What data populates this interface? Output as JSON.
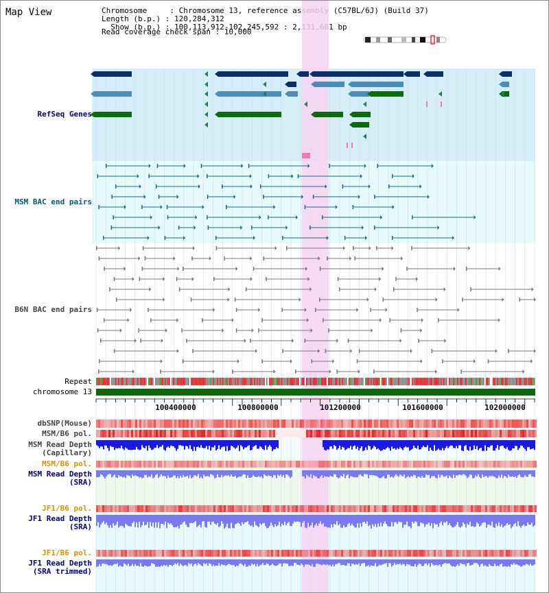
{
  "header": {
    "title": "Map View",
    "chromosome_line": "Chromosome     : Chromosome 13, reference assembly (C57BL/6J) (Build 37)",
    "length_line": "Length (b.p.) : 120,284,312",
    "show_line": "  Show (b.p.) : 100,113,912-102,245,592 : 2,131,681 bp",
    "coverage_line": "Read coverage check span : 10,000"
  },
  "tracks": {
    "refseq": "RefSeq Genes",
    "msm_bac": "MSM BAC end pairs",
    "b6n_bac": "B6N BAC end pairs",
    "repeat": "Repeat",
    "chromosome": "chromosome 13",
    "dbsnp": "dbSNP(Mouse)",
    "msm_b6_pol": "MSM/B6 pol.",
    "msm_read_depth_cap_1": "MSM Read Depth",
    "msm_read_depth_cap_2": "(Capillary)",
    "msm_b6_pol_sra": "MSM/B6 pol.",
    "msm_read_depth_sra_1": "MSM Read Depth",
    "msm_read_depth_sra_2": "(SRA)",
    "jf1_b6_pol": "JF1/B6 pol.",
    "jf1_read_depth_sra_1": "JF1 Read Depth",
    "jf1_read_depth_sra_2": "(SRA)",
    "jf1_b6_pol_2": "JF1/B6 pol.",
    "jf1_read_depth_trim_1": "JF1 Read Depth",
    "jf1_read_depth_trim_2": "(SRA trimmed)"
  },
  "axis": {
    "ticks": [
      "100400000",
      "100800000",
      "101200000",
      "101600000",
      "102000000"
    ]
  },
  "colors": {
    "refseq_dark": "#0a2f6b",
    "refseq_mid": "#4a8db8",
    "refseq_green": "#0b6b0b",
    "bac_blue": "#1a6a8a",
    "highlight": "#f7d3f1",
    "chrom_green": "#0b6b0b",
    "pol_red": "#e03030",
    "depth_blue": "#1a1ae0",
    "depth_light": "#7a7af0",
    "label_blue": "#000080",
    "label_teal": "#005a7a",
    "label_orange": "#e09000"
  },
  "icons": {
    "ideogram": "chromosome-ideogram-icon"
  }
}
